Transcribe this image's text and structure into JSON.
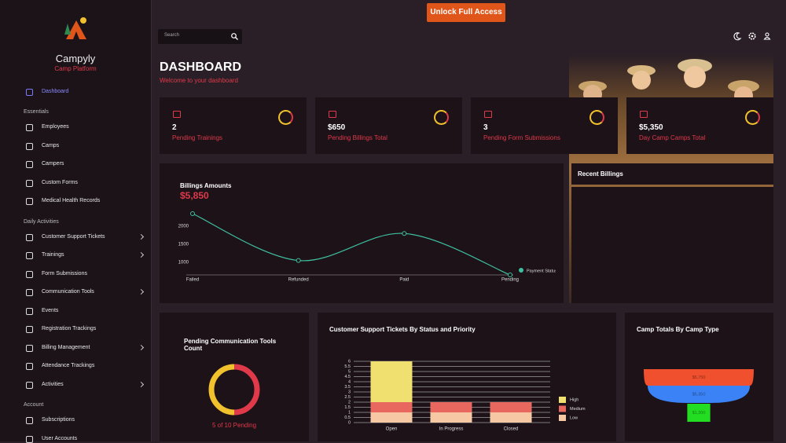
{
  "top_bar": {
    "button": "Unlock Full Access",
    "search_placeholder": "Search"
  },
  "sidebar": {
    "brand": "Campyly",
    "tagline": "Camp Platform",
    "active": "Dashboard",
    "sections": [
      {
        "title": "Essentials",
        "items": [
          {
            "label": "Employees"
          },
          {
            "label": "Camps"
          },
          {
            "label": "Campers"
          },
          {
            "label": "Custom Forms"
          },
          {
            "label": "Medical Health Records"
          }
        ]
      },
      {
        "title": "Daily Activities",
        "items": [
          {
            "label": "Customer Support Tickets",
            "expandable": true
          },
          {
            "label": "Trainings",
            "expandable": true
          },
          {
            "label": "Form Submissions"
          },
          {
            "label": "Communication Tools",
            "expandable": true
          },
          {
            "label": "Events"
          },
          {
            "label": "Registration Trackings"
          },
          {
            "label": "Billing Management",
            "expandable": true
          },
          {
            "label": "Attendance Trackings"
          },
          {
            "label": "Activities",
            "expandable": true
          }
        ]
      },
      {
        "title": "Account",
        "items": [
          {
            "label": "Subscriptions"
          },
          {
            "label": "User Accounts"
          }
        ]
      }
    ]
  },
  "header": {
    "title": "DASHBOARD",
    "subtitle": "Welcome to your dashboard"
  },
  "stats": [
    {
      "value": "2",
      "label": "Pending Trainings"
    },
    {
      "value": "$650",
      "label": "Pending Billings Total"
    },
    {
      "value": "3",
      "label": "Pending Form Submissions"
    },
    {
      "value": "$5,350",
      "label": "Day Camp Camps Total"
    }
  ],
  "recent_billings": {
    "title": "Recent Billings"
  },
  "chart_data": [
    {
      "type": "line",
      "title": "Billings Amounts",
      "subtitle": "$5,850",
      "categories": [
        "Failed",
        "Refunded",
        "Paid",
        "Pending"
      ],
      "series": [
        {
          "name": "Payment Status",
          "color": "#3fbf9f",
          "values": [
            2350,
            1050,
            1800,
            650
          ]
        }
      ],
      "ylim": [
        650,
        2350
      ],
      "yticks": [
        1000,
        1500,
        2000
      ]
    },
    {
      "type": "donut",
      "title": "Pending Communication Tools Count",
      "caption": "5 of 10 Pending",
      "values": [
        5,
        5
      ],
      "colors": [
        "#f2c12e",
        "#e0394a"
      ]
    },
    {
      "type": "stacked_bar",
      "title": "Customer Support Tickets By Status and Priority",
      "categories": [
        "Open",
        "In Progress",
        "Closed"
      ],
      "series": [
        {
          "name": "Low",
          "color": "#f6c9a4",
          "values": [
            1,
            1,
            1
          ]
        },
        {
          "name": "Medium",
          "color": "#e8675f",
          "values": [
            1,
            1,
            1
          ]
        },
        {
          "name": "High",
          "color": "#efe070",
          "values": [
            4,
            0,
            0
          ]
        }
      ],
      "ylim": [
        0,
        6
      ],
      "yticks": [
        0,
        0.5,
        1,
        1.5,
        2,
        2.5,
        3,
        3.5,
        4,
        4.5,
        5,
        5.5,
        6
      ],
      "grid": true
    },
    {
      "type": "funnel",
      "title": "Camp Totals By Camp Type",
      "values": [
        5750,
        5350,
        1200
      ],
      "value_labels": [
        "$5,750",
        "$5,350",
        "$1,200"
      ],
      "colors": [
        "#f0502e",
        "#3b82f6",
        "#22dd22"
      ]
    }
  ]
}
